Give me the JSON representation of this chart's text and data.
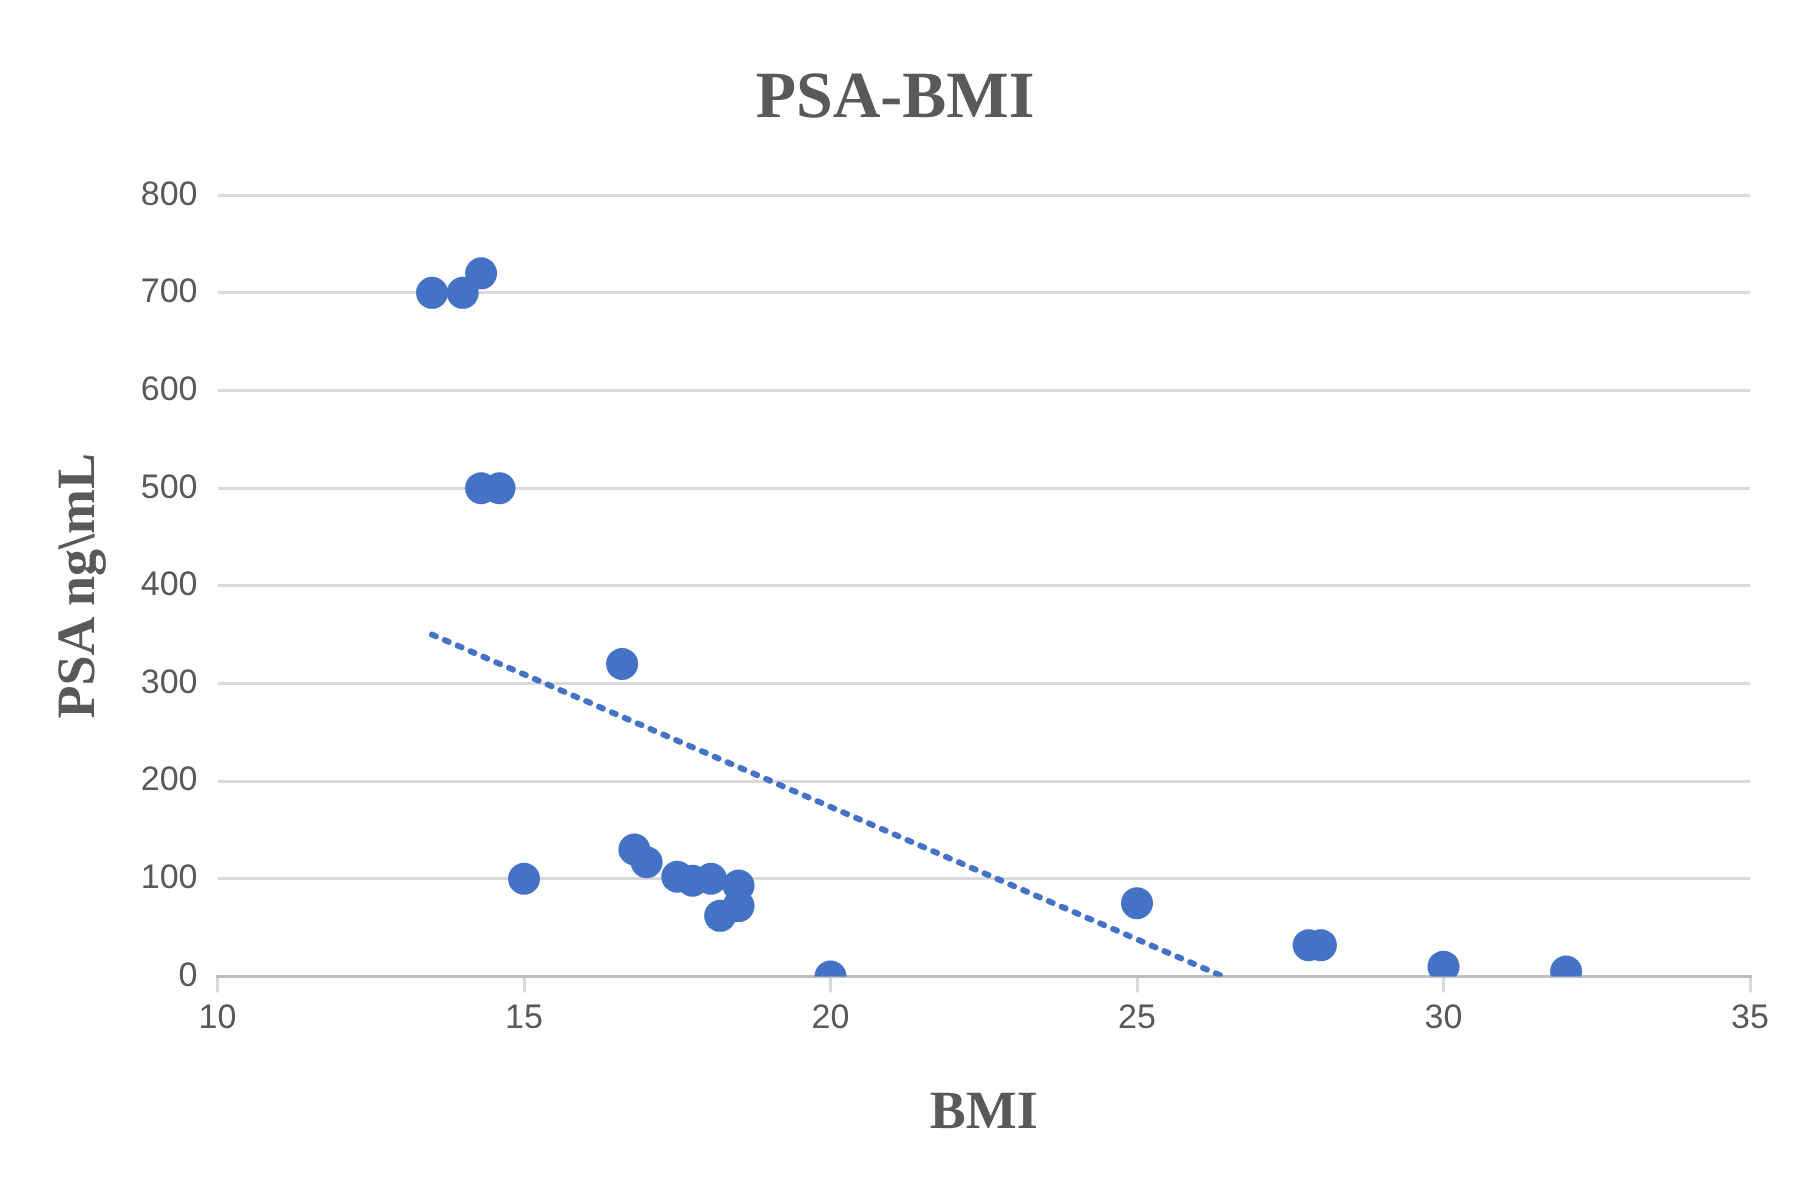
{
  "chart_data": {
    "type": "scatter",
    "title": "PSA-BMI",
    "xlabel": "BMI",
    "ylabel": "PSA ng\\mL",
    "series": [
      {
        "color": "#4472c4",
        "x": [
          13.5,
          14,
          14.3,
          14.3,
          14.6,
          15,
          16.6,
          16.8,
          17,
          17.5,
          17.75,
          18.05,
          18.5,
          18.5,
          18.2,
          20,
          25,
          27.8,
          28,
          30,
          32
        ],
        "values": [
          700,
          700,
          720,
          500,
          500,
          100,
          320,
          130,
          117,
          102,
          98,
          100,
          93,
          72,
          62,
          0,
          75,
          32,
          32,
          10,
          5
        ]
      },
      {
        "type": "line",
        "color": "#4472c4",
        "line_style": "dotted",
        "marker": "none",
        "x": [
          13.5,
          26.4
        ],
        "values": [
          350,
          0
        ]
      }
    ],
    "marker": "circle",
    "xlim": [
      10,
      35
    ],
    "xticks": [
      10,
      15,
      20,
      25,
      30,
      35
    ],
    "ylim": [
      0,
      800
    ],
    "yticks": [
      0,
      100,
      200,
      300,
      400,
      500,
      600,
      700,
      800
    ],
    "grid": "y",
    "legend": false
  }
}
